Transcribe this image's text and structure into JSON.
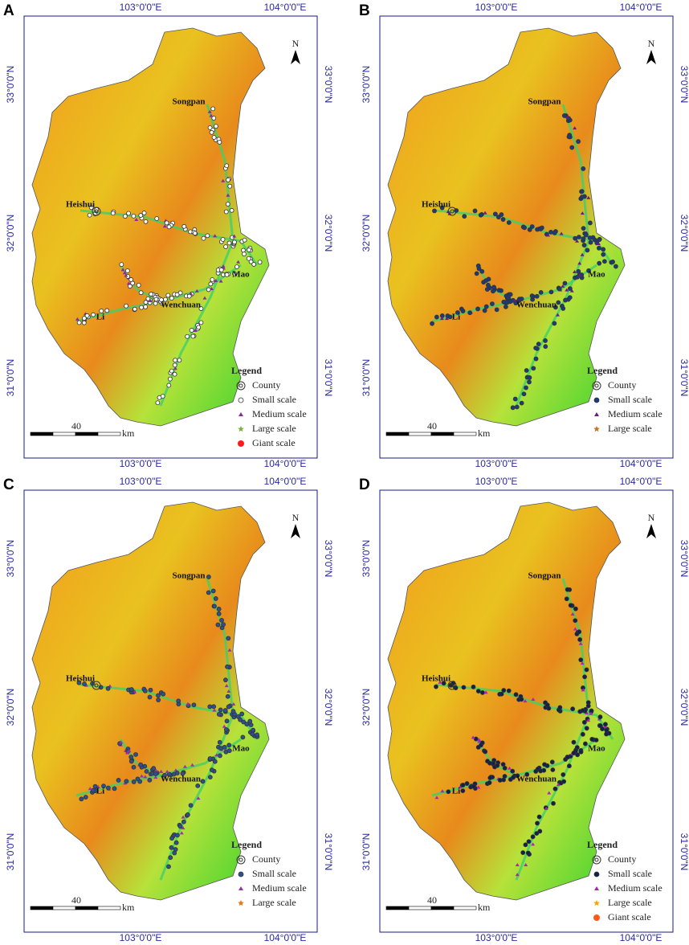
{
  "panels": [
    {
      "letter": "A",
      "x_labels": [
        "103°0'0\"E",
        "104°0'0\"E"
      ],
      "y_labels": [
        "33°0'0\"N",
        "32°0'0\"N",
        "31°0'0\"N"
      ],
      "counties": [
        "Songpan",
        "Heishui",
        "Mao",
        "Li",
        "Wenchuan"
      ],
      "north": "N",
      "legend": {
        "title": "Legend",
        "items": [
          {
            "label": "County",
            "color": "#333333"
          },
          {
            "label": "Small scale",
            "color": "#ffffff"
          },
          {
            "label": "Medium scale",
            "color": "#8b2a9b"
          },
          {
            "label": "Large scale",
            "color": "#7db53a"
          },
          {
            "label": "Giant scale",
            "color": "#ff1a1a"
          }
        ]
      },
      "scale": {
        "value": 40,
        "unit": "km"
      }
    },
    {
      "letter": "B",
      "x_labels": [
        "103°0'0\"E",
        "104°0'0\"E"
      ],
      "y_labels": [
        "33°0'0\"N",
        "32°0'0\"N",
        "31°0'0\"N"
      ],
      "counties": [
        "Songpan",
        "Heishui",
        "Mao",
        "Li",
        "Wenchuan"
      ],
      "north": "N",
      "legend": {
        "title": "Legend",
        "items": [
          {
            "label": "County",
            "color": "#333333"
          },
          {
            "label": "Small scale",
            "color": "#1f3a7a"
          },
          {
            "label": "Medium scale",
            "color": "#6a1b8a"
          },
          {
            "label": "Large scale",
            "color": "#c0772a"
          }
        ]
      },
      "scale": {
        "value": 40,
        "unit": "km"
      }
    },
    {
      "letter": "C",
      "x_labels": [
        "103°0'0\"E",
        "104°0'0\"E"
      ],
      "y_labels": [
        "33°0'0\"N",
        "32°0'0\"N",
        "31°0'0\"N"
      ],
      "counties": [
        "Songpan",
        "Heishui",
        "Mao",
        "Li",
        "Wenchuan"
      ],
      "north": "N",
      "legend": {
        "title": "Legend",
        "items": [
          {
            "label": "County",
            "color": "#333333"
          },
          {
            "label": "Small scale",
            "color": "#2f4f8f"
          },
          {
            "label": "Medium scale",
            "color": "#9b30a8"
          },
          {
            "label": "Large scale",
            "color": "#e07b20"
          }
        ]
      },
      "scale": {
        "value": 40,
        "unit": "km"
      }
    },
    {
      "letter": "D",
      "x_labels": [
        "103°0'0\"E",
        "104°0'0\"E"
      ],
      "y_labels": [
        "33°0'0\"N",
        "32°0'0\"N",
        "31°0'0\"N"
      ],
      "counties": [
        "Songpan",
        "Heishui",
        "Mao",
        "Li",
        "Wenchuan"
      ],
      "north": "N",
      "legend": {
        "title": "Legend",
        "items": [
          {
            "label": "County",
            "color": "#333333"
          },
          {
            "label": "Small scale",
            "color": "#14204a"
          },
          {
            "label": "Medium scale",
            "color": "#b020c0"
          },
          {
            "label": "Large scale",
            "color": "#f5a800"
          },
          {
            "label": "Giant scale",
            "color": "#ff5a1a"
          }
        ]
      },
      "scale": {
        "value": 40,
        "unit": "km"
      }
    }
  ]
}
